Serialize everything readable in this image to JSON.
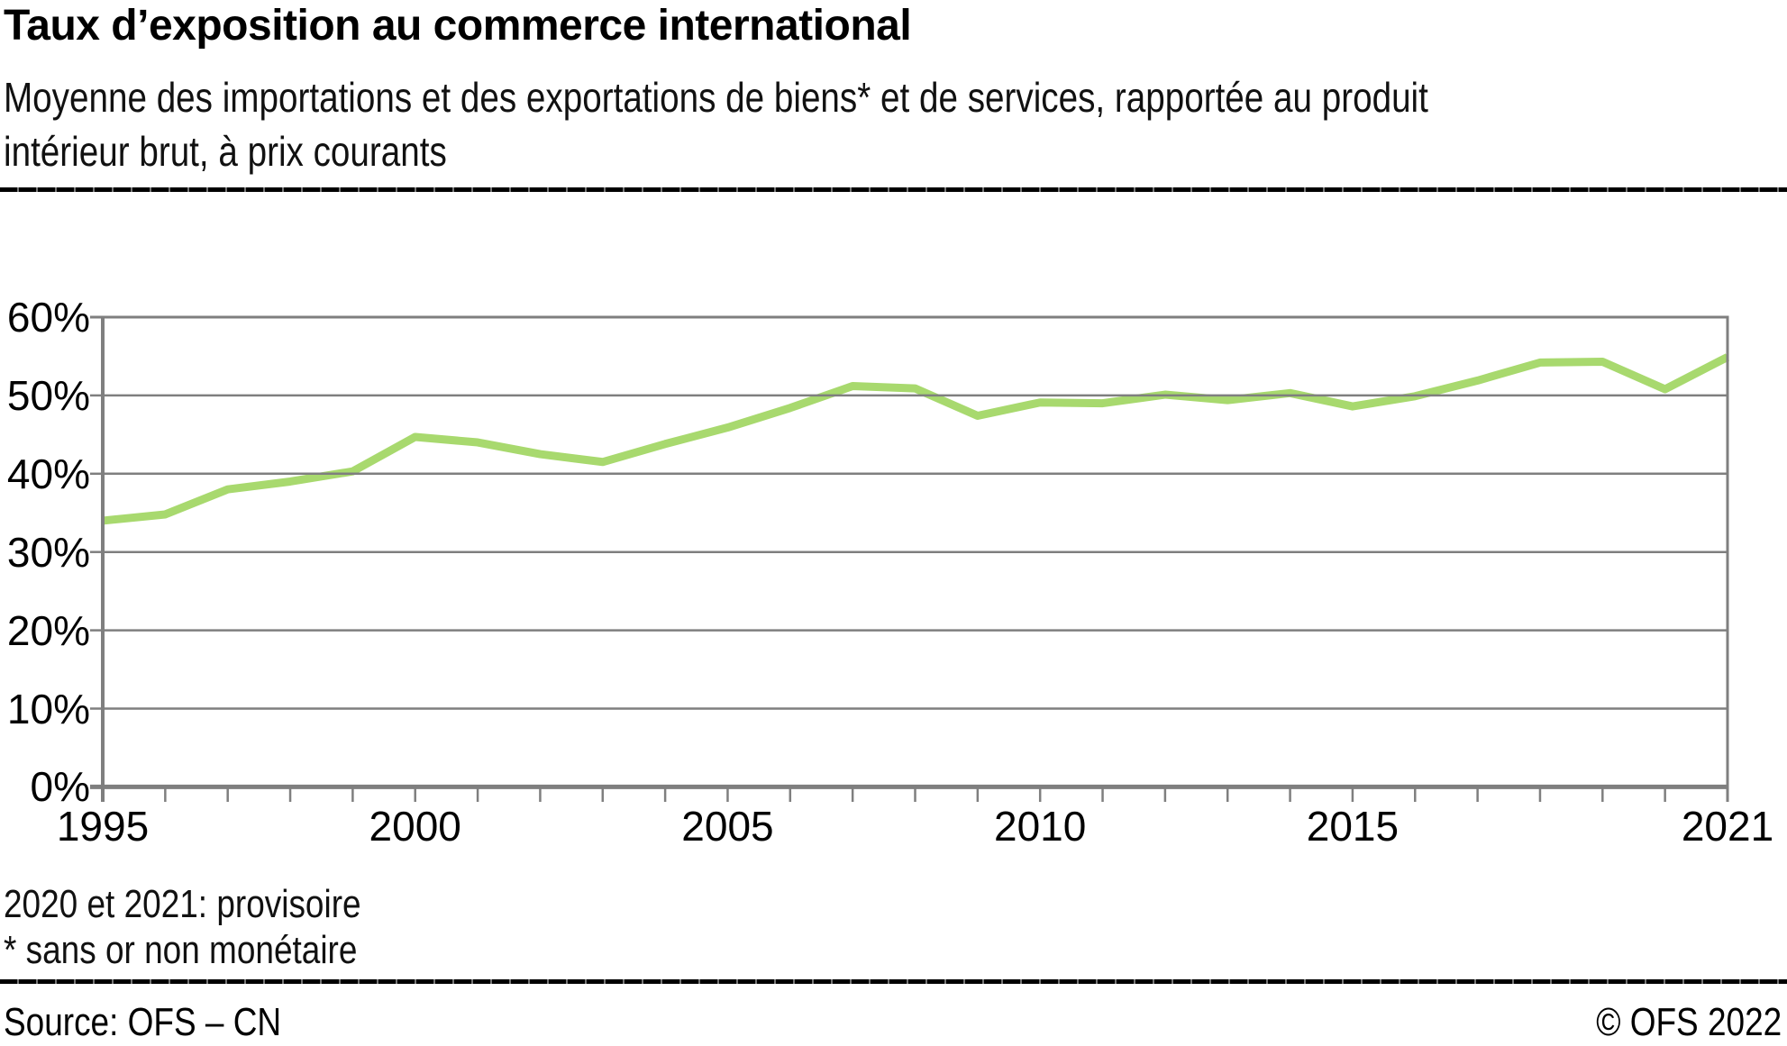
{
  "header": {
    "title": "Taux d’exposition au commerce international",
    "subtitle_lines": [
      "Moyenne des importations et des exportations de biens* et de services, rapportée au produit",
      "intérieur brut, à prix courants"
    ]
  },
  "footnotes": {
    "provisional": "2020 et 2021: provisoire",
    "gold": "* sans or non monétaire"
  },
  "footer": {
    "source": "Source: OFS – CN",
    "copyright": "© OFS 2022"
  },
  "chart_data": {
    "type": "line",
    "title": "Taux d'exposition au commerce international",
    "xlabel": "",
    "ylabel": "",
    "x": [
      1995,
      1996,
      1997,
      1998,
      1999,
      2000,
      2001,
      2002,
      2003,
      2004,
      2005,
      2006,
      2007,
      2008,
      2009,
      2010,
      2011,
      2012,
      2013,
      2014,
      2015,
      2016,
      2017,
      2018,
      2019,
      2020,
      2021
    ],
    "series": [
      {
        "name": "Taux d'exposition au commerce international (% du PIB)",
        "values": [
          34.0,
          34.8,
          38.0,
          39.0,
          40.3,
          44.7,
          44.0,
          42.5,
          41.5,
          43.8,
          45.9,
          48.4,
          51.2,
          50.9,
          47.4,
          49.1,
          49.0,
          50.1,
          49.4,
          50.3,
          48.6,
          49.9,
          51.9,
          54.2,
          54.3,
          50.8,
          54.9
        ]
      }
    ],
    "ylim": [
      0,
      60
    ],
    "ytick_step": 10,
    "ytick_labels": [
      "0%",
      "10%",
      "20%",
      "30%",
      "40%",
      "50%",
      "60%"
    ],
    "xtick_labeled_years": [
      1995,
      2000,
      2005,
      2010,
      2015,
      2021
    ],
    "grid": true,
    "legend_position": "none",
    "line_color": "#a8d96e",
    "grid_color": "#7f7f7f",
    "axis_color": "#7f7f7f"
  }
}
